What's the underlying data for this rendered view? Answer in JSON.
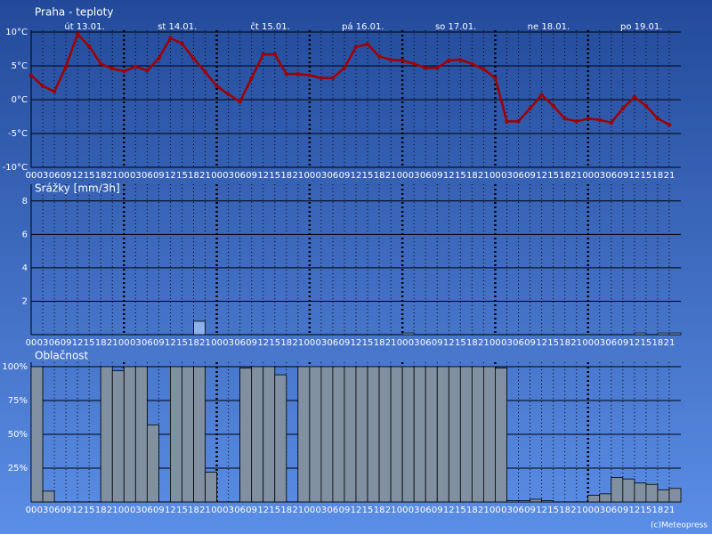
{
  "credit": "(c)Meteopress",
  "chart_data": [
    {
      "type": "line",
      "title": "Praha - teploty",
      "color": "#a00000",
      "day_labels": [
        "út 13.01.",
        "st 14.01.",
        "čt 15.01.",
        "pá 16.01.",
        "so 17.01.",
        "ne 18.01.",
        "po 19.01."
      ],
      "categories": [
        "00",
        "03",
        "06",
        "09",
        "12",
        "15",
        "18",
        "21",
        "00",
        "03",
        "06",
        "09",
        "12",
        "15",
        "18",
        "21",
        "00",
        "03",
        "06",
        "09",
        "12",
        "15",
        "18",
        "21",
        "00",
        "03",
        "06",
        "09",
        "12",
        "15",
        "18",
        "21",
        "00",
        "03",
        "06",
        "09",
        "12",
        "15",
        "18",
        "21",
        "00",
        "03",
        "06",
        "09",
        "12",
        "15",
        "18",
        "21",
        "00",
        "03",
        "06",
        "09",
        "12",
        "15",
        "18",
        "21"
      ],
      "values": [
        3.6,
        2.0,
        1.2,
        4.9,
        9.7,
        7.9,
        5.3,
        4.6,
        4.2,
        4.9,
        4.3,
        6.1,
        9.1,
        8.3,
        6.1,
        4.1,
        2.0,
        0.8,
        -0.3,
        3.2,
        6.7,
        6.7,
        3.8,
        3.8,
        3.6,
        3.2,
        3.2,
        4.7,
        7.8,
        8.2,
        6.4,
        5.9,
        5.8,
        5.3,
        4.7,
        4.7,
        5.8,
        5.9,
        5.3,
        4.5,
        3.2,
        -3.2,
        -3.2,
        -1.3,
        0.7,
        -0.9,
        -2.8,
        -3.2,
        -2.8,
        -3.0,
        -3.4,
        -1.3,
        0.4,
        -0.9,
        -2.8,
        -3.7
      ],
      "ylim": [
        -10,
        10
      ],
      "yticks": [
        {
          "value": 10,
          "label": "10°C"
        },
        {
          "value": 5,
          "label": "5°C"
        },
        {
          "value": 0,
          "label": "0°C"
        },
        {
          "value": -5,
          "label": "-5°C"
        },
        {
          "value": -10,
          "label": "-10°C"
        }
      ],
      "grid": true
    },
    {
      "type": "bar",
      "title": "Srážky [mm/3h]",
      "color": "#8fb0f0",
      "categories": [
        "00",
        "03",
        "06",
        "09",
        "12",
        "15",
        "18",
        "21",
        "00",
        "03",
        "06",
        "09",
        "12",
        "15",
        "18",
        "21",
        "00",
        "03",
        "06",
        "09",
        "12",
        "15",
        "18",
        "21",
        "00",
        "03",
        "06",
        "09",
        "12",
        "15",
        "18",
        "21",
        "00",
        "03",
        "06",
        "09",
        "12",
        "15",
        "18",
        "21",
        "00",
        "03",
        "06",
        "09",
        "12",
        "15",
        "18",
        "21",
        "00",
        "03",
        "06",
        "09",
        "12",
        "15",
        "18",
        "21"
      ],
      "values": [
        0,
        0,
        0,
        0,
        0,
        0,
        0,
        0,
        0,
        0,
        0,
        0,
        0,
        0,
        0.8,
        0,
        0,
        0,
        0,
        0,
        0,
        0,
        0,
        0,
        0,
        0,
        0,
        0,
        0,
        0,
        0,
        0,
        0.1,
        0,
        0,
        0,
        0,
        0,
        0,
        0,
        0,
        0,
        0,
        0,
        0,
        0,
        0,
        0,
        0,
        0,
        0,
        0,
        0.1,
        0,
        0.1,
        0.1
      ],
      "ylim": [
        0,
        9
      ],
      "yticks": [
        2,
        4,
        6,
        8
      ],
      "grid": true
    },
    {
      "type": "bar",
      "title": "Oblačnost",
      "color": "#8090a0",
      "categories": [
        "00",
        "03",
        "06",
        "09",
        "12",
        "15",
        "18",
        "21",
        "00",
        "03",
        "06",
        "09",
        "12",
        "15",
        "18",
        "21",
        "00",
        "03",
        "06",
        "09",
        "12",
        "15",
        "18",
        "21",
        "00",
        "03",
        "06",
        "09",
        "12",
        "15",
        "18",
        "21",
        "00",
        "03",
        "06",
        "09",
        "12",
        "15",
        "18",
        "21",
        "00",
        "03",
        "06",
        "09",
        "12",
        "15",
        "18",
        "21",
        "00",
        "03",
        "06",
        "09",
        "12",
        "15",
        "18",
        "21"
      ],
      "values": [
        100,
        8,
        0,
        0,
        0,
        0,
        100,
        97,
        100,
        100,
        57,
        0,
        100,
        100,
        100,
        22,
        0,
        0,
        99,
        100,
        100,
        94,
        0,
        100,
        100,
        100,
        100,
        100,
        100,
        100,
        100,
        100,
        100,
        100,
        100,
        100,
        100,
        100,
        100,
        100,
        99,
        1,
        1,
        2,
        1,
        0,
        0,
        0,
        5,
        6,
        18,
        17,
        14,
        13,
        9,
        10
      ],
      "ylim": [
        0,
        100
      ],
      "yticks": [
        {
          "value": 100,
          "label": "100%"
        },
        {
          "value": 75,
          "label": "75%"
        },
        {
          "value": 50,
          "label": "50%"
        },
        {
          "value": 25,
          "label": "25%"
        }
      ],
      "grid": true
    }
  ]
}
